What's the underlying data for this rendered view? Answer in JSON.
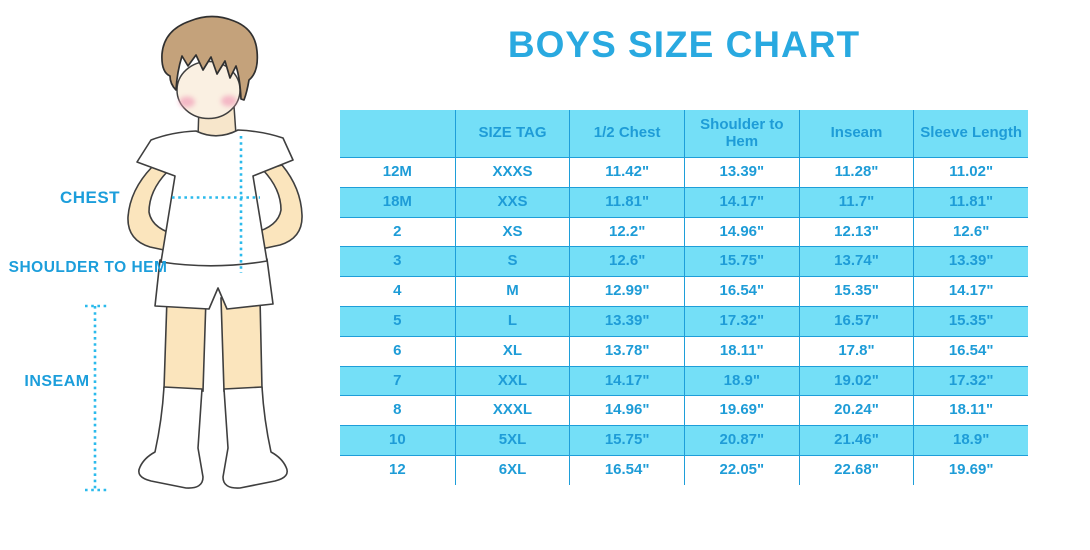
{
  "title": "BOYS SIZE CHART",
  "diagram": {
    "labels": {
      "chest": "CHEST",
      "shoulder_to_hem": "SHOULDER TO HEM",
      "inseam": "INSEAM"
    }
  },
  "colors": {
    "accent_blue": "#29A9E0",
    "table_text_blue": "#1E9CD7",
    "row_cyan": "#74DFF7",
    "divider_blue": "#1E9ED9",
    "dotted_line_cyan": "#2BBAEC",
    "skin": "#FBE5BD",
    "hair_brown": "#C4A27B"
  },
  "chart_data": {
    "type": "table",
    "title": "BOYS SIZE CHART",
    "columns": [
      "",
      "SIZE TAG",
      "1/2 Chest",
      "Shoulder to Hem",
      "Inseam",
      "Sleeve Length"
    ],
    "rows": [
      [
        "12M",
        "XXXS",
        "11.42\"",
        "13.39\"",
        "11.28\"",
        "11.02\""
      ],
      [
        "18M",
        "XXS",
        "11.81\"",
        "14.17\"",
        "11.7\"",
        "11.81\""
      ],
      [
        "2",
        "XS",
        "12.2\"",
        "14.96\"",
        "12.13\"",
        "12.6\""
      ],
      [
        "3",
        "S",
        "12.6\"",
        "15.75\"",
        "13.74\"",
        "13.39\""
      ],
      [
        "4",
        "M",
        "12.99\"",
        "16.54\"",
        "15.35\"",
        "14.17\""
      ],
      [
        "5",
        "L",
        "13.39\"",
        "17.32\"",
        "16.57\"",
        "15.35\""
      ],
      [
        "6",
        "XL",
        "13.78\"",
        "18.11\"",
        "17.8\"",
        "16.54\""
      ],
      [
        "7",
        "XXL",
        "14.17\"",
        "18.9\"",
        "19.02\"",
        "17.32\""
      ],
      [
        "8",
        "XXXL",
        "14.96\"",
        "19.69\"",
        "20.24\"",
        "18.11\""
      ],
      [
        "10",
        "5XL",
        "15.75\"",
        "20.87\"",
        "21.46\"",
        "18.9\""
      ],
      [
        "12",
        "6XL",
        "16.54\"",
        "22.05\"",
        "22.68\"",
        "19.69\""
      ]
    ]
  }
}
